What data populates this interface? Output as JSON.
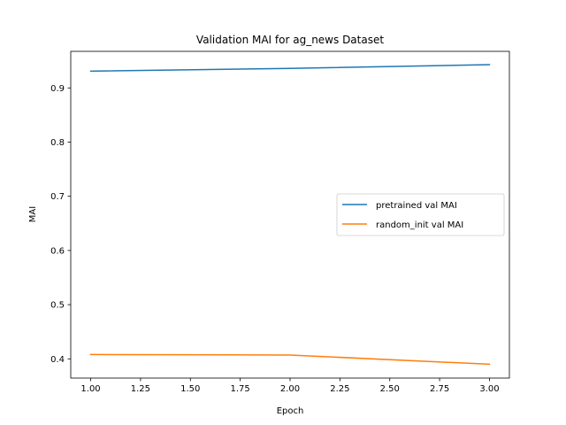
{
  "chart_data": {
    "type": "line",
    "title": "Validation MAI for ag_news Dataset",
    "xlabel": "Epoch",
    "ylabel": "MAI",
    "xlim": [
      0.9,
      3.1
    ],
    "ylim": [
      0.3645,
      0.9675
    ],
    "grid": false,
    "legend_position": "center-right",
    "x_ticks": [
      1.0,
      1.25,
      1.5,
      1.75,
      2.0,
      2.25,
      2.5,
      2.75,
      3.0
    ],
    "x_tick_labels": [
      "1.00",
      "1.25",
      "1.50",
      "1.75",
      "2.00",
      "2.25",
      "2.50",
      "2.75",
      "3.00"
    ],
    "y_ticks": [
      0.4,
      0.5,
      0.6,
      0.7,
      0.8,
      0.9
    ],
    "y_tick_labels": [
      "0.4",
      "0.5",
      "0.6",
      "0.7",
      "0.8",
      "0.9"
    ],
    "series": [
      {
        "name": "pretrained val MAI",
        "color": "#1f77b4",
        "x": [
          1,
          2,
          3
        ],
        "y": [
          0.931,
          0.936,
          0.943
        ]
      },
      {
        "name": "random_init val MAI",
        "color": "#ff7f0e",
        "x": [
          1,
          2,
          3
        ],
        "y": [
          0.408,
          0.407,
          0.39
        ]
      }
    ]
  }
}
